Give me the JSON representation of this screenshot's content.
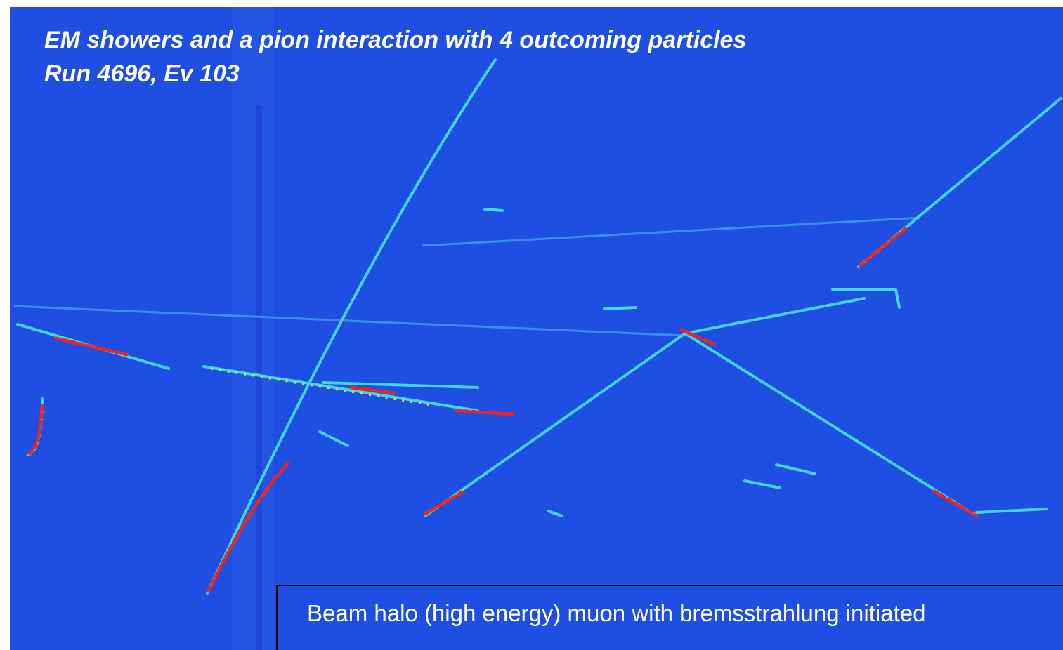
{
  "header": {
    "title": "EM showers and a pion interaction with 4 outcoming particles",
    "subtitle": "Run 4696, Ev 103"
  },
  "caption": {
    "text": "Beam halo (high energy) muon with bremsstrahlung initiated"
  }
}
